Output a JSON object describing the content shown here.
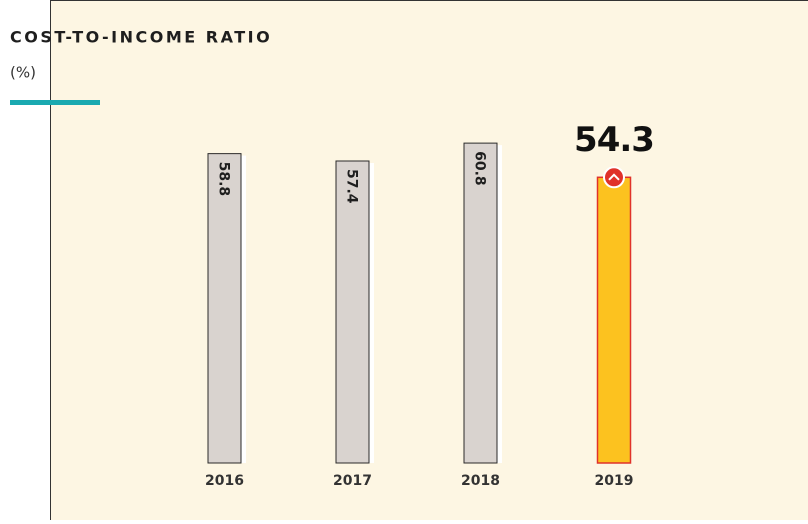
{
  "chart_data": {
    "type": "bar",
    "title": "COST-TO-INCOME RATIO",
    "subtitle": "(%)",
    "categories": [
      "2016",
      "2017",
      "2018",
      "2019"
    ],
    "values": [
      58.8,
      57.4,
      60.8,
      54.3
    ],
    "colors": [
      "#d9d3cf",
      "#d9d3cf",
      "#d9d3cf",
      "#fcc21f"
    ],
    "highlight_index": 3,
    "ylim": [
      0,
      88
    ]
  }
}
